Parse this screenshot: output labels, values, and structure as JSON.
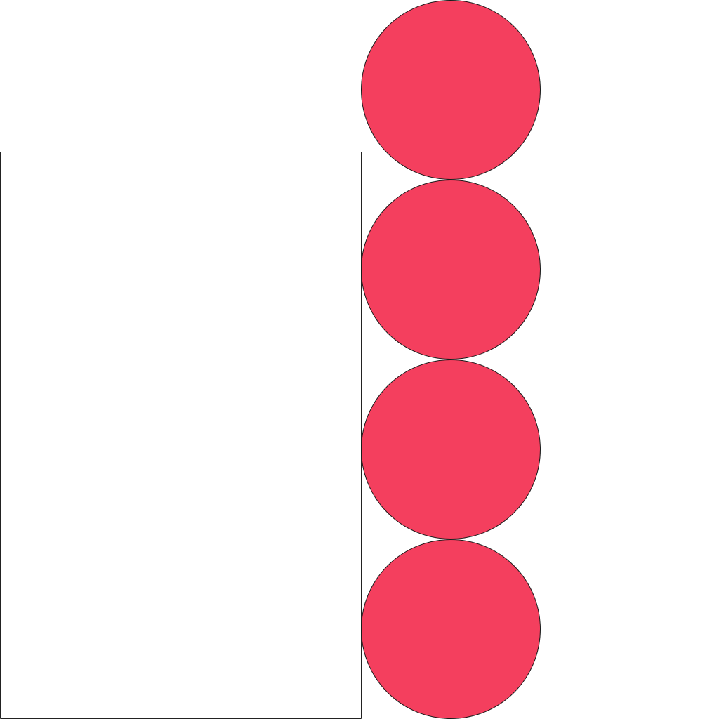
{
  "colors": {
    "background": "#ffffff",
    "panel_fill": "#ffffff",
    "panel_stroke": "#222222",
    "circle_fill": "#f43f5e",
    "circle_stroke": "#1a1a1a"
  },
  "panel": {
    "icon": "empty-rectangle"
  },
  "circles": {
    "count": 4,
    "icon": "circle"
  }
}
